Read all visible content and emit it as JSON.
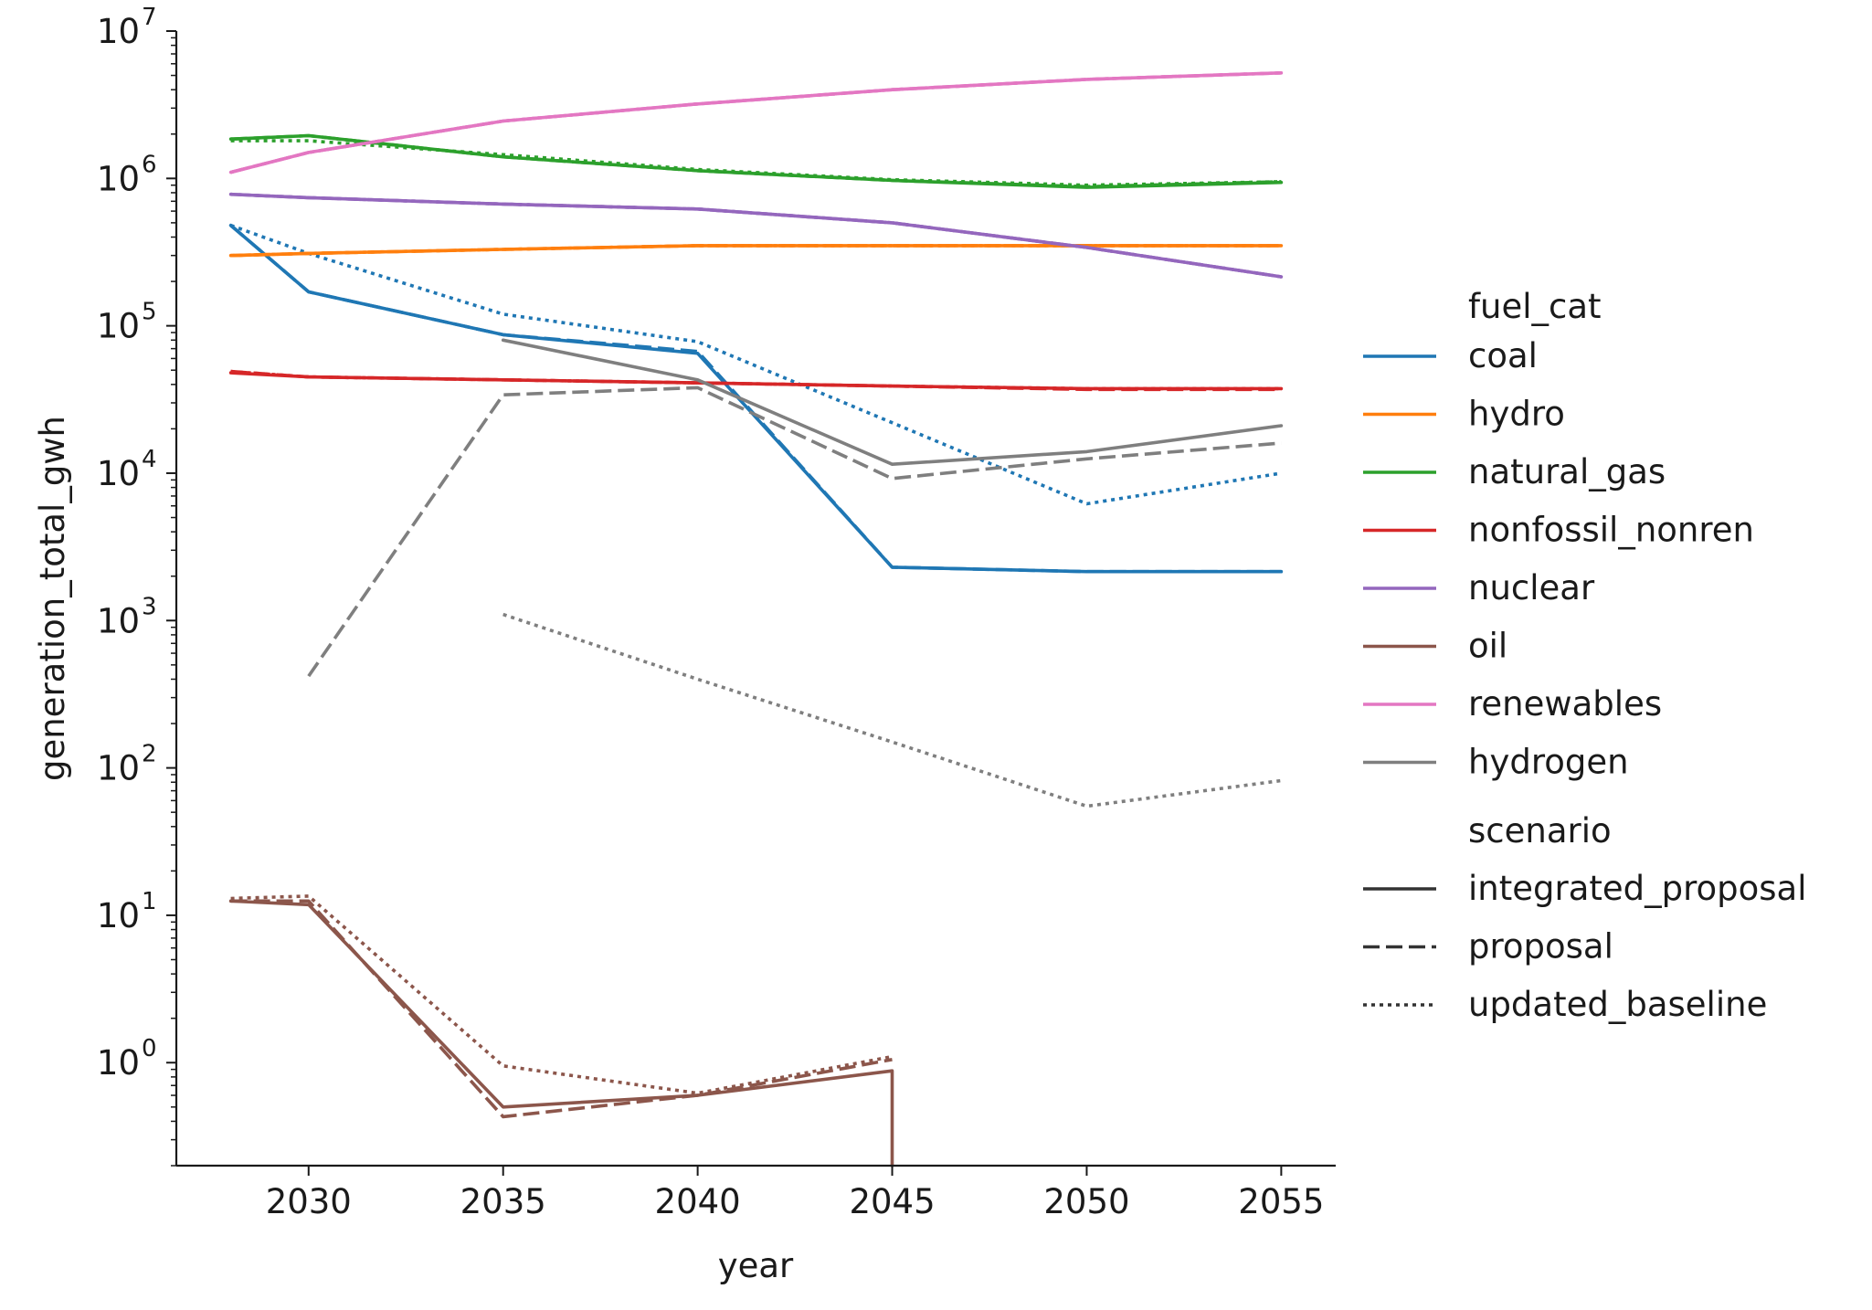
{
  "chart_data": {
    "type": "line",
    "xlabel": "year",
    "ylabel": "generation_total_gwh",
    "yscale": "log",
    "xlim": [
      2026.6,
      2056.4
    ],
    "ylim": [
      0.2,
      10000000
    ],
    "x_ticks": [
      {
        "value": 2030,
        "label": "2030"
      },
      {
        "value": 2035,
        "label": "2035"
      },
      {
        "value": 2040,
        "label": "2040"
      },
      {
        "value": 2045,
        "label": "2045"
      },
      {
        "value": 2050,
        "label": "2050"
      },
      {
        "value": 2055,
        "label": "2055"
      }
    ],
    "y_ticks": [
      {
        "value": 1,
        "exp": "0"
      },
      {
        "value": 10,
        "exp": "1"
      },
      {
        "value": 100,
        "exp": "2"
      },
      {
        "value": 1000,
        "exp": "3"
      },
      {
        "value": 10000,
        "exp": "4"
      },
      {
        "value": 100000,
        "exp": "5"
      },
      {
        "value": 1000000,
        "exp": "6"
      },
      {
        "value": 10000000,
        "exp": "7"
      }
    ],
    "y_tick_base": "10",
    "grid": false,
    "legend": {
      "placement": "right",
      "hue_title": "fuel_cat",
      "hue_entries": [
        {
          "label": "coal",
          "color": "#1f77b4"
        },
        {
          "label": "hydro",
          "color": "#ff7f0e"
        },
        {
          "label": "natural_gas",
          "color": "#2ca02c"
        },
        {
          "label": "nonfossil_nonren",
          "color": "#d62728"
        },
        {
          "label": "nuclear",
          "color": "#9467bd"
        },
        {
          "label": "oil",
          "color": "#8c564b"
        },
        {
          "label": "renewables",
          "color": "#e377c2"
        },
        {
          "label": "hydrogen",
          "color": "#7f7f7f"
        }
      ],
      "style_title": "scenario",
      "style_entries": [
        {
          "label": "integrated_proposal",
          "dash": "solid"
        },
        {
          "label": "proposal",
          "dash": "dashed"
        },
        {
          "label": "updated_baseline",
          "dash": "dotted"
        }
      ]
    },
    "series": [
      {
        "fuel_cat": "coal",
        "scenario": "integrated_proposal",
        "color": "#1f77b4",
        "dash": "solid",
        "x": [
          2028,
          2030,
          2035,
          2040,
          2045,
          2050,
          2055
        ],
        "y": [
          480000,
          170000,
          87000,
          65000,
          2300,
          2150,
          2150
        ]
      },
      {
        "fuel_cat": "coal",
        "scenario": "proposal",
        "color": "#1f77b4",
        "dash": "dashed",
        "x": [
          2028,
          2030,
          2035,
          2040,
          2045,
          2050,
          2055
        ],
        "y": [
          480000,
          170000,
          87000,
          67000,
          2300,
          2150,
          2150
        ]
      },
      {
        "fuel_cat": "coal",
        "scenario": "updated_baseline",
        "color": "#1f77b4",
        "dash": "dotted",
        "x": [
          2028,
          2030,
          2035,
          2040,
          2045,
          2050,
          2055
        ],
        "y": [
          480000,
          310000,
          120000,
          78000,
          22000,
          6200,
          10000
        ]
      },
      {
        "fuel_cat": "hydro",
        "scenario": "integrated_proposal",
        "color": "#ff7f0e",
        "dash": "solid",
        "x": [
          2028,
          2030,
          2035,
          2040,
          2045,
          2050,
          2055
        ],
        "y": [
          300000,
          310000,
          330000,
          350000,
          350000,
          350000,
          350000
        ]
      },
      {
        "fuel_cat": "hydro",
        "scenario": "proposal",
        "color": "#ff7f0e",
        "dash": "dashed",
        "x": [
          2028,
          2030,
          2035,
          2040,
          2045,
          2050,
          2055
        ],
        "y": [
          300000,
          310000,
          330000,
          350000,
          350000,
          350000,
          350000
        ]
      },
      {
        "fuel_cat": "hydro",
        "scenario": "updated_baseline",
        "color": "#ff7f0e",
        "dash": "dotted",
        "x": [
          2028,
          2030,
          2035,
          2040,
          2045,
          2050,
          2055
        ],
        "y": [
          300000,
          310000,
          330000,
          350000,
          350000,
          350000,
          350000
        ]
      },
      {
        "fuel_cat": "natural_gas",
        "scenario": "integrated_proposal",
        "color": "#2ca02c",
        "dash": "solid",
        "x": [
          2028,
          2030,
          2035,
          2040,
          2045,
          2050,
          2055
        ],
        "y": [
          1850000,
          1950000,
          1400000,
          1130000,
          970000,
          870000,
          940000
        ]
      },
      {
        "fuel_cat": "natural_gas",
        "scenario": "proposal",
        "color": "#2ca02c",
        "dash": "dashed",
        "x": [
          2028,
          2030,
          2035,
          2040,
          2045,
          2050,
          2055
        ],
        "y": [
          1850000,
          1950000,
          1400000,
          1130000,
          970000,
          880000,
          950000
        ]
      },
      {
        "fuel_cat": "natural_gas",
        "scenario": "updated_baseline",
        "color": "#2ca02c",
        "dash": "dotted",
        "x": [
          2028,
          2030,
          2035,
          2040,
          2045,
          2050,
          2055
        ],
        "y": [
          1800000,
          1800000,
          1450000,
          1150000,
          980000,
          900000,
          950000
        ]
      },
      {
        "fuel_cat": "nonfossil_nonren",
        "scenario": "integrated_proposal",
        "color": "#d62728",
        "dash": "solid",
        "x": [
          2028,
          2030,
          2035,
          2040,
          2045,
          2050,
          2055
        ],
        "y": [
          48000,
          45000,
          43000,
          41000,
          39000,
          37500,
          37500
        ]
      },
      {
        "fuel_cat": "nonfossil_nonren",
        "scenario": "proposal",
        "color": "#d62728",
        "dash": "dashed",
        "x": [
          2028,
          2030,
          2035,
          2040,
          2045,
          2050,
          2055
        ],
        "y": [
          49000,
          45000,
          43000,
          41000,
          39000,
          37000,
          37000
        ]
      },
      {
        "fuel_cat": "nonfossil_nonren",
        "scenario": "updated_baseline",
        "color": "#d62728",
        "dash": "dotted",
        "x": [
          2028,
          2030,
          2035,
          2040,
          2045,
          2050,
          2055
        ],
        "y": [
          49000,
          45000,
          43000,
          41000,
          39000,
          37500,
          37500
        ]
      },
      {
        "fuel_cat": "nuclear",
        "scenario": "integrated_proposal",
        "color": "#9467bd",
        "dash": "solid",
        "x": [
          2028,
          2030,
          2035,
          2040,
          2045,
          2050,
          2055
        ],
        "y": [
          780000,
          740000,
          670000,
          620000,
          500000,
          340000,
          215000
        ]
      },
      {
        "fuel_cat": "nuclear",
        "scenario": "proposal",
        "color": "#9467bd",
        "dash": "dashed",
        "x": [
          2028,
          2030,
          2035,
          2040,
          2045,
          2050,
          2055
        ],
        "y": [
          780000,
          740000,
          670000,
          620000,
          500000,
          340000,
          215000
        ]
      },
      {
        "fuel_cat": "nuclear",
        "scenario": "updated_baseline",
        "color": "#9467bd",
        "dash": "dotted",
        "x": [
          2028,
          2030,
          2035,
          2040,
          2045,
          2050,
          2055
        ],
        "y": [
          780000,
          740000,
          670000,
          620000,
          500000,
          340000,
          215000
        ]
      },
      {
        "fuel_cat": "oil",
        "scenario": "integrated_proposal",
        "color": "#8c564b",
        "dash": "solid",
        "x": [
          2028,
          2030,
          2035,
          2040,
          2045,
          2045
        ],
        "y": [
          12.5,
          11.8,
          0.5,
          0.6,
          0.88,
          0.2
        ]
      },
      {
        "fuel_cat": "oil",
        "scenario": "proposal",
        "color": "#8c564b",
        "dash": "dashed",
        "x": [
          2028,
          2030,
          2035,
          2040,
          2045
        ],
        "y": [
          12.5,
          12.5,
          0.43,
          0.6,
          1.05
        ]
      },
      {
        "fuel_cat": "oil",
        "scenario": "updated_baseline",
        "color": "#8c564b",
        "dash": "dotted",
        "x": [
          2028,
          2030,
          2035,
          2040,
          2045
        ],
        "y": [
          13,
          13.5,
          0.95,
          0.62,
          1.1
        ]
      },
      {
        "fuel_cat": "renewables",
        "scenario": "integrated_proposal",
        "color": "#e377c2",
        "dash": "solid",
        "x": [
          2028,
          2030,
          2035,
          2040,
          2045,
          2050,
          2055
        ],
        "y": [
          1100000,
          1500000,
          2450000,
          3200000,
          4000000,
          4700000,
          5200000
        ]
      },
      {
        "fuel_cat": "renewables",
        "scenario": "proposal",
        "color": "#e377c2",
        "dash": "dashed",
        "x": [
          2028,
          2030,
          2035,
          2040,
          2045,
          2050,
          2055
        ],
        "y": [
          1100000,
          1500000,
          2450000,
          3200000,
          4000000,
          4700000,
          5200000
        ]
      },
      {
        "fuel_cat": "renewables",
        "scenario": "updated_baseline",
        "color": "#e377c2",
        "dash": "dotted",
        "x": [
          2028,
          2030,
          2035,
          2040,
          2045,
          2050,
          2055
        ],
        "y": [
          1100000,
          1500000,
          2450000,
          3200000,
          4000000,
          4700000,
          5200000
        ]
      },
      {
        "fuel_cat": "hydrogen",
        "scenario": "integrated_proposal",
        "color": "#7f7f7f",
        "dash": "solid",
        "x": [
          2035,
          2040,
          2045,
          2050,
          2055
        ],
        "y": [
          80000,
          43000,
          11500,
          14000,
          21000
        ]
      },
      {
        "fuel_cat": "hydrogen",
        "scenario": "proposal",
        "color": "#7f7f7f",
        "dash": "dashed",
        "x": [
          2030,
          2035,
          2040,
          2045,
          2050,
          2055
        ],
        "y": [
          420,
          34000,
          38000,
          9200,
          12500,
          16000
        ]
      },
      {
        "fuel_cat": "hydrogen",
        "scenario": "updated_baseline",
        "color": "#7f7f7f",
        "dash": "dotted",
        "x": [
          2035,
          2040,
          2045,
          2050,
          2055
        ],
        "y": [
          1100,
          400,
          150,
          55,
          82
        ]
      }
    ]
  }
}
